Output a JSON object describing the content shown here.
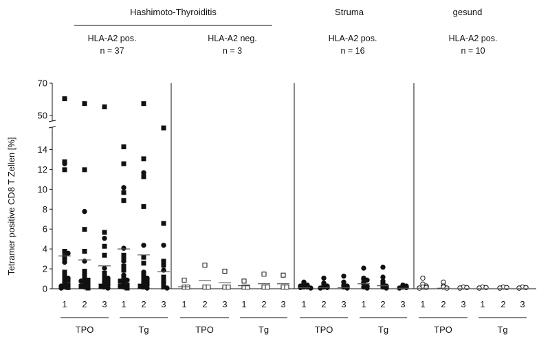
{
  "chart_data": {
    "type": "scatter",
    "ylabel": "Tetramer positive CD8  T Zellen [%]",
    "y_ticks_lower": [
      "0",
      "2",
      "4",
      "6",
      "8",
      "10",
      "12",
      "14"
    ],
    "y_ticks_upper": [
      "50",
      "70"
    ],
    "y_axis_break": [
      15,
      45
    ],
    "ylim_lower": [
      0,
      15
    ],
    "ylim_upper": [
      45,
      70
    ],
    "x_ticks": [
      "1",
      "2",
      "3"
    ],
    "peptide_groups": [
      "TPO",
      "Tg"
    ],
    "diagnosis_groups": [
      {
        "title": "Hashimoto-Thyroiditis",
        "cohorts": [
          {
            "label": "HLA-A2 pos.",
            "n": "n = 37",
            "marker": "filled-square-circle",
            "series": [
              {
                "name": "TPO 1",
                "values": [
                  60,
                  12.7,
                  12.5,
                  11.9,
                  3.7,
                  3.5,
                  3.2,
                  3.0,
                  2.6,
                  1.6,
                  1.2,
                  1.0,
                  0.9,
                  0.8,
                  0.6,
                  0.4,
                  0.3,
                  0.2,
                  0.1,
                  0.05,
                  0.0
                ],
                "median": 3.3
              },
              {
                "name": "TPO 2",
                "values": [
                  57,
                  11.9,
                  7.7,
                  5.9,
                  3.7,
                  2.7,
                  1.7,
                  1.3,
                  1.0,
                  0.9,
                  0.8,
                  0.7,
                  0.6,
                  0.5,
                  0.4,
                  0.3,
                  0.2,
                  0.1,
                  0.0
                ],
                "median": 2.9
              },
              {
                "name": "TPO 3",
                "values": [
                  55,
                  5.6,
                  5.0,
                  4.2,
                  3.3,
                  2.0,
                  1.5,
                  1.2,
                  1.0,
                  0.8,
                  0.7,
                  0.6,
                  0.5,
                  0.4,
                  0.3,
                  0.2,
                  0.1,
                  0.0
                ],
                "median": 2.3
              },
              {
                "name": "Tg 1",
                "values": [
                  14.2,
                  12.5,
                  10.1,
                  9.6,
                  8.8,
                  4.0,
                  3.3,
                  3.0,
                  2.7,
                  2.2,
                  1.8,
                  1.3,
                  1.0,
                  0.9,
                  0.8,
                  0.7,
                  0.5,
                  0.4,
                  0.3,
                  0.2,
                  0.1,
                  0.0
                ],
                "median": 4.0
              },
              {
                "name": "Tg 2",
                "values": [
                  57,
                  13.0,
                  11.6,
                  11.2,
                  8.2,
                  4.3,
                  3.1,
                  2.5,
                  1.6,
                  1.3,
                  1.2,
                  1.0,
                  0.9,
                  0.8,
                  0.6,
                  0.5,
                  0.4,
                  0.3,
                  0.2,
                  0.1,
                  0.0
                ],
                "median": 3.4
              },
              {
                "name": "Tg 3",
                "values": [
                  42,
                  6.5,
                  4.3,
                  2.7,
                  2.3,
                  1.8,
                  1.1,
                  0.8,
                  0.5,
                  0.3,
                  0.1,
                  0.0
                ],
                "median": 1.7
              }
            ]
          },
          {
            "label": "HLA-A2 neg.",
            "n": "n = 3",
            "marker": "open-square",
            "series": [
              {
                "name": "TPO 1",
                "values": [
                  0.8,
                  0.1,
                  0.1
                ],
                "median": 0.2
              },
              {
                "name": "TPO 2",
                "values": [
                  2.3,
                  0.1,
                  0.1
                ],
                "median": 0.8
              },
              {
                "name": "TPO 3",
                "values": [
                  1.7,
                  0.1,
                  0.1
                ],
                "median": 0.6
              },
              {
                "name": "Tg 1",
                "values": [
                  0.7,
                  0.1,
                  0.1
                ],
                "median": 0.3
              },
              {
                "name": "Tg 2",
                "values": [
                  1.4,
                  0.1,
                  0.1
                ],
                "median": 0.5
              },
              {
                "name": "Tg 3",
                "values": [
                  1.3,
                  0.1,
                  0.1
                ],
                "median": 0.5
              }
            ]
          }
        ]
      },
      {
        "title": "Struma",
        "cohorts": [
          {
            "label": "HLA-A2 pos.",
            "n": "n = 16",
            "marker": "filled-circle",
            "series": [
              {
                "name": "TPO 1",
                "values": [
                  0.6,
                  0.4,
                  0.3,
                  0.2,
                  0.1,
                  0.1,
                  0.05,
                  0.0
                ],
                "median": 0.1
              },
              {
                "name": "TPO 2",
                "values": [
                  1.0,
                  0.5,
                  0.3,
                  0.2,
                  0.1,
                  0.05,
                  0.0
                ],
                "median": 0.1
              },
              {
                "name": "TPO 3",
                "values": [
                  1.2,
                  0.6,
                  0.3,
                  0.2,
                  0.1,
                  0.0
                ],
                "median": 0.1
              },
              {
                "name": "Tg 1",
                "values": [
                  2.0,
                  1.0,
                  0.9,
                  0.8,
                  0.6,
                  0.4,
                  0.2,
                  0.1,
                  0.0
                ],
                "median": 0.5
              },
              {
                "name": "Tg 2",
                "values": [
                  2.1,
                  1.1,
                  0.7,
                  0.5,
                  0.3,
                  0.2,
                  0.1,
                  0.0
                ],
                "median": 0.3
              },
              {
                "name": "Tg 3",
                "values": [
                  0.3,
                  0.2,
                  0.1,
                  0.05,
                  0.0
                ],
                "median": 0.05
              }
            ]
          }
        ]
      },
      {
        "title": "gesund",
        "cohorts": [
          {
            "label": "HLA-A2 pos.",
            "n": "n = 10",
            "marker": "open-circle",
            "series": [
              {
                "name": "TPO 1",
                "values": [
                  1.0,
                  0.4,
                  0.2,
                  0.1,
                  0.05,
                  0.0
                ],
                "median": 0.05
              },
              {
                "name": "TPO 2",
                "values": [
                  0.6,
                  0.2,
                  0.1,
                  0.0
                ],
                "median": 0.05
              },
              {
                "name": "TPO 3",
                "values": [
                  0.1,
                  0.05,
                  0.0
                ],
                "median": 0.0
              },
              {
                "name": "Tg 1",
                "values": [
                  0.1,
                  0.05,
                  0.0
                ],
                "median": 0.0
              },
              {
                "name": "Tg 2",
                "values": [
                  0.1,
                  0.05,
                  0.0
                ],
                "median": 0.0
              },
              {
                "name": "Tg 3",
                "values": [
                  0.1,
                  0.05,
                  0.0
                ],
                "median": 0.0
              }
            ]
          }
        ]
      }
    ]
  }
}
